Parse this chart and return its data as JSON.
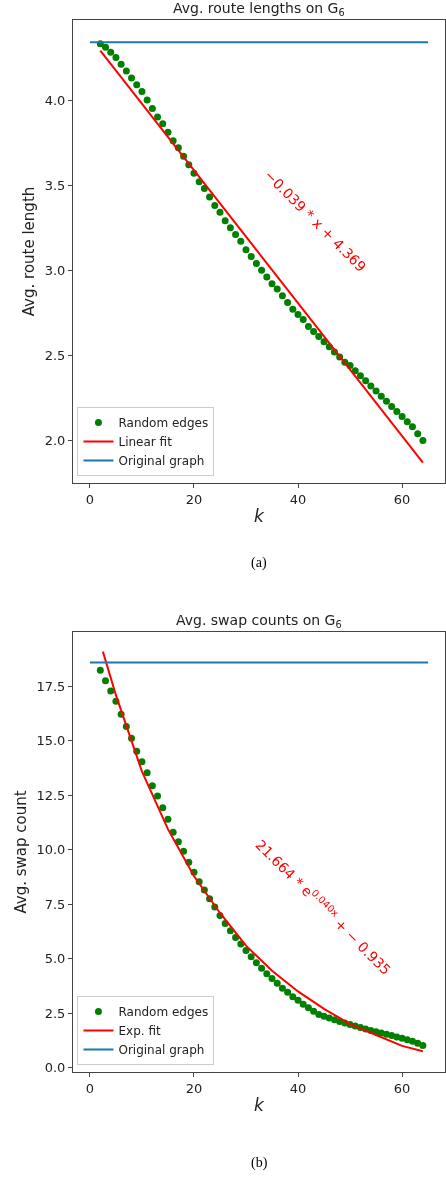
{
  "chart_data": [
    {
      "type": "scatter",
      "title": "Avg. route lengths on G$_{6}$",
      "xlabel": "k",
      "ylabel": "Avg. route length",
      "xlim": [
        -3.25,
        68.25
      ],
      "xticks": [
        0,
        20,
        40,
        60
      ],
      "ylim": [
        1.75,
        4.47
      ],
      "yticks": [
        {
          "value": 2,
          "label": "2.0"
        },
        {
          "value": 2.5,
          "label": "2.5"
        },
        {
          "value": 3,
          "label": "3.0"
        },
        {
          "value": 3.5,
          "label": "3.5"
        },
        {
          "value": 4,
          "label": "4.0"
        }
      ],
      "legend": "bottom left",
      "series": [
        {
          "name": "Random edges",
          "marker": "circle",
          "color": "#008000",
          "x": [
            2,
            3,
            4,
            5,
            6,
            7,
            8,
            9,
            10,
            11,
            12,
            13,
            14,
            15,
            16,
            17,
            18,
            19,
            20,
            21,
            22,
            23,
            24,
            25,
            26,
            27,
            28,
            29,
            30,
            31,
            32,
            33,
            34,
            35,
            36,
            37,
            38,
            39,
            40,
            41,
            42,
            43,
            44,
            45,
            46,
            47,
            48,
            49,
            50,
            51,
            52,
            53,
            54,
            55,
            56,
            57,
            58,
            59,
            60,
            61,
            62,
            63,
            64
          ],
          "values": [
            4.33,
            4.31,
            4.28,
            4.25,
            4.21,
            4.17,
            4.13,
            4.09,
            4.05,
            4.0,
            3.95,
            3.9,
            3.86,
            3.81,
            3.76,
            3.72,
            3.67,
            3.62,
            3.57,
            3.52,
            3.48,
            3.43,
            3.38,
            3.34,
            3.29,
            3.25,
            3.21,
            3.17,
            3.12,
            3.08,
            3.04,
            3.0,
            2.96,
            2.92,
            2.89,
            2.85,
            2.81,
            2.77,
            2.74,
            2.71,
            2.67,
            2.64,
            2.61,
            2.58,
            2.55,
            2.52,
            2.49,
            2.46,
            2.44,
            2.41,
            2.38,
            2.35,
            2.32,
            2.29,
            2.26,
            2.23,
            2.2,
            2.17,
            2.14,
            2.11,
            2.08,
            2.04,
            2.0
          ]
        },
        {
          "name": "Linear fit",
          "type": "line",
          "line_style": "solid",
          "color": "#ff0000",
          "x": [
            2,
            64
          ],
          "values": [
            4.29,
            1.87
          ]
        },
        {
          "name": "Original graph",
          "type": "line",
          "line_style": "solid",
          "color": "#1f77b4",
          "x": [
            0,
            65
          ],
          "values": [
            4.34,
            4.34
          ]
        }
      ],
      "annotations": [
        "−0.039 * x + 4.369",
        "(a)"
      ]
    },
    {
      "type": "scatter",
      "title": "Avg. swap counts on G$_{6}$",
      "xlabel": "k",
      "ylabel": "Avg. swap count",
      "xlim": [
        -3.25,
        68.25
      ],
      "xticks": [
        0,
        20,
        40,
        60
      ],
      "ylim": [
        -0.2,
        20.0
      ],
      "yticks": [
        {
          "value": 0,
          "label": "0.0"
        },
        {
          "value": 2.5,
          "label": "2.5"
        },
        {
          "value": 5,
          "label": "5.0"
        },
        {
          "value": 7.5,
          "label": "7.5"
        },
        {
          "value": 10,
          "label": "10.0"
        },
        {
          "value": 12.5,
          "label": "12.5"
        },
        {
          "value": 15,
          "label": "15.0"
        },
        {
          "value": 17.5,
          "label": "17.5"
        }
      ],
      "legend": "bottom left",
      "series": [
        {
          "name": "Random edges",
          "marker": "circle",
          "color": "#008000",
          "x": [
            2,
            3,
            4,
            5,
            6,
            7,
            8,
            9,
            10,
            11,
            12,
            13,
            14,
            15,
            16,
            17,
            18,
            19,
            20,
            21,
            22,
            23,
            24,
            25,
            26,
            27,
            28,
            29,
            30,
            31,
            32,
            33,
            34,
            35,
            36,
            37,
            38,
            39,
            40,
            41,
            42,
            43,
            44,
            45,
            46,
            47,
            48,
            49,
            50,
            51,
            52,
            53,
            54,
            55,
            56,
            57,
            58,
            59,
            60,
            61,
            62,
            63,
            64
          ],
          "values": [
            18.24,
            17.76,
            17.29,
            16.82,
            16.22,
            15.66,
            15.12,
            14.53,
            14.04,
            13.54,
            12.94,
            12.47,
            11.93,
            11.4,
            10.81,
            10.37,
            9.94,
            9.43,
            8.97,
            8.53,
            8.15,
            7.75,
            7.37,
            6.99,
            6.62,
            6.29,
            5.97,
            5.68,
            5.38,
            5.09,
            4.82,
            4.56,
            4.31,
            4.09,
            3.87,
            3.65,
            3.46,
            3.26,
            3.09,
            2.91,
            2.75,
            2.59,
            2.44,
            2.36,
            2.28,
            2.2,
            2.12,
            2.05,
            1.98,
            1.91,
            1.84,
            1.77,
            1.71,
            1.65,
            1.59,
            1.53,
            1.47,
            1.41,
            1.35,
            1.28,
            1.21,
            1.12,
            1.02
          ]
        },
        {
          "name": "Exp. fit",
          "type": "line",
          "line_style": "solid",
          "color": "#ff0000",
          "x": [
            2.5,
            5,
            10,
            15,
            20,
            25,
            30,
            35,
            40,
            45,
            50,
            55,
            60,
            64
          ],
          "values": [
            19.1,
            17.1,
            13.6,
            10.95,
            8.8,
            7.1,
            5.6,
            4.45,
            3.5,
            2.7,
            2.0,
            1.5,
            1.0,
            0.75
          ]
        },
        {
          "name": "Original graph",
          "type": "line",
          "line_style": "solid",
          "color": "#1f77b4",
          "x": [
            0,
            65
          ],
          "values": [
            18.6,
            18.6
          ]
        }
      ],
      "annotations": [
        "21.664 * e$^{0.040x}$ + − 0.935",
        "(b)"
      ]
    }
  ]
}
